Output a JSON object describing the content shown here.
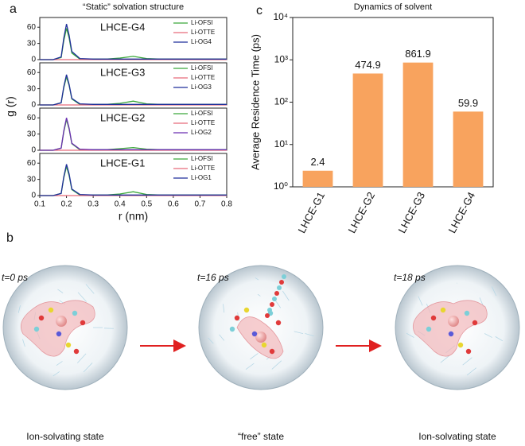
{
  "panel_labels": [
    "a",
    "c",
    "b"
  ],
  "chart_data": [
    {
      "type": "line",
      "title": "“Static” solvation structure",
      "x_label": "r (nm)",
      "y_label": "g (r)",
      "x": [
        0.1,
        0.15,
        0.18,
        0.19,
        0.2,
        0.21,
        0.22,
        0.25,
        0.3,
        0.35,
        0.4,
        0.45,
        0.5,
        0.55,
        0.6,
        0.65,
        0.7,
        0.75,
        0.8
      ],
      "xlim": [
        0.1,
        0.8
      ],
      "xticks": [
        0.1,
        0.2,
        0.3,
        0.4,
        0.5,
        0.6,
        0.7,
        0.8
      ],
      "panels": [
        {
          "label": "LHCE-G4",
          "label_color": "#333333",
          "ylim": [
            0,
            78
          ],
          "yticks": [
            0,
            30,
            60
          ],
          "series": [
            {
              "name": "Li-OFSI",
              "color": "#3aa83a",
              "values": [
                0,
                0,
                4,
                35,
                58,
                40,
                12,
                1,
                1,
                1,
                3,
                6,
                2,
                1,
                1,
                1,
                1,
                1,
                1
              ]
            },
            {
              "name": "Li-OTTE",
              "color": "#e86a7a",
              "values": [
                0,
                0,
                0,
                0,
                0,
                0,
                0,
                0,
                0,
                0,
                0,
                0,
                0,
                0,
                0,
                0,
                0,
                0,
                0
              ]
            },
            {
              "name": "Li-OG4",
              "color": "#1f2f9a",
              "values": [
                0,
                0,
                5,
                40,
                66,
                45,
                15,
                2,
                1,
                1,
                1,
                1,
                1,
                1,
                1,
                1,
                1,
                1,
                1
              ]
            }
          ]
        },
        {
          "label": "LHCE-G3",
          "label_color": "#e8456b",
          "ylim": [
            0,
            78
          ],
          "yticks": [
            0,
            30,
            60
          ],
          "series": [
            {
              "name": "Li-OFSI",
              "color": "#3aa83a",
              "values": [
                0,
                0,
                4,
                32,
                52,
                36,
                11,
                1,
                1,
                1,
                3,
                7,
                2,
                1,
                1,
                1,
                1,
                1,
                1
              ]
            },
            {
              "name": "Li-OTTE",
              "color": "#e86a7a",
              "values": [
                0,
                0,
                0,
                0,
                0,
                0,
                0,
                0,
                0,
                0,
                0,
                0,
                0,
                0,
                0,
                0,
                0,
                0,
                0
              ]
            },
            {
              "name": "Li-OG3",
              "color": "#1f2f9a",
              "values": [
                0,
                0,
                4,
                34,
                56,
                38,
                12,
                2,
                1,
                1,
                1,
                1,
                1,
                1,
                1,
                1,
                1,
                1,
                1
              ]
            }
          ]
        },
        {
          "label": "LHCE-G2",
          "label_color": "#4a9fc8",
          "ylim": [
            0,
            78
          ],
          "yticks": [
            0,
            30,
            60
          ],
          "series": [
            {
              "name": "Li-OFSI",
              "color": "#3aa83a",
              "values": [
                0,
                0,
                4,
                34,
                57,
                39,
                12,
                1,
                1,
                1,
                3,
                5,
                2,
                1,
                1,
                1,
                1,
                1,
                1
              ]
            },
            {
              "name": "Li-OTTE",
              "color": "#e86a7a",
              "values": [
                0,
                0,
                0,
                0,
                0,
                0,
                0,
                0,
                0,
                0,
                0,
                0,
                0,
                0,
                0,
                0,
                0,
                0,
                0
              ]
            },
            {
              "name": "Li-OG2",
              "color": "#6a2fb0",
              "values": [
                0,
                0,
                4,
                36,
                60,
                41,
                13,
                2,
                1,
                1,
                1,
                1,
                1,
                1,
                1,
                1,
                1,
                1,
                1
              ]
            }
          ]
        },
        {
          "label": "LHCE-G1",
          "label_color": "#c0652a",
          "ylim": [
            0,
            78
          ],
          "yticks": [
            0,
            30,
            60
          ],
          "series": [
            {
              "name": "Li-OFSI",
              "color": "#3aa83a",
              "values": [
                0,
                0,
                4,
                33,
                54,
                37,
                11,
                1,
                1,
                1,
                3,
                7,
                2,
                1,
                1,
                1,
                1,
                1,
                1
              ]
            },
            {
              "name": "Li-OTTE",
              "color": "#e86a7a",
              "values": [
                0,
                0,
                0,
                0,
                0,
                0,
                0,
                0,
                0,
                0,
                0,
                0,
                0,
                0,
                0,
                0,
                0,
                0,
                0
              ]
            },
            {
              "name": "Li-OG1",
              "color": "#1f2f9a",
              "values": [
                0,
                0,
                4,
                35,
                58,
                40,
                12,
                2,
                1,
                1,
                1,
                1,
                1,
                1,
                1,
                1,
                1,
                1,
                1
              ]
            }
          ]
        }
      ]
    },
    {
      "type": "bar",
      "title": "Dynamics of solvent",
      "y_label": "Average Residence Time (ps)",
      "categories": [
        "LHCE-G1",
        "LHCE-G2",
        "LHCE-G3",
        "LHCE-G4"
      ],
      "category_colors": [
        "#c0652a",
        "#4a9fc8",
        "#e8456b",
        "#333333"
      ],
      "values": [
        2.4,
        474.9,
        861.9,
        59.9
      ],
      "color": "#f8a35e",
      "log_scale": true,
      "ylim": [
        1,
        10000
      ],
      "yticks": [
        {
          "value": 1,
          "label": "10⁰"
        },
        {
          "value": 10,
          "label": "10¹"
        },
        {
          "value": 100,
          "label": "10²"
        },
        {
          "value": 1000,
          "label": "10³"
        },
        {
          "value": 10000,
          "label": "10⁴"
        }
      ]
    }
  ],
  "panel_b": {
    "frames": [
      {
        "time": "t=0 ps",
        "caption": "Ion-solvating state"
      },
      {
        "time": "t=16 ps",
        "caption": "“free” state"
      },
      {
        "time": "t=18 ps",
        "caption": "Ion-solvating state"
      }
    ]
  }
}
